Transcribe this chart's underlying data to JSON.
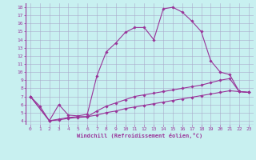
{
  "xlabel": "Windchill (Refroidissement éolien,°C)",
  "xlim": [
    -0.5,
    23.5
  ],
  "ylim": [
    3.5,
    18.5
  ],
  "yticks": [
    4,
    5,
    6,
    7,
    8,
    9,
    10,
    11,
    12,
    13,
    14,
    15,
    16,
    17,
    18
  ],
  "xticks": [
    0,
    1,
    2,
    3,
    4,
    5,
    6,
    7,
    8,
    9,
    10,
    11,
    12,
    13,
    14,
    15,
    16,
    17,
    18,
    19,
    20,
    21,
    22,
    23
  ],
  "bg_color": "#c8f0f0",
  "grid_color": "#aaaacc",
  "line_color": "#993399",
  "line_width": 0.8,
  "marker": "D",
  "marker_size": 1.8,
  "series1": [
    [
      0,
      7.0
    ],
    [
      1,
      5.8
    ],
    [
      2,
      4.0
    ],
    [
      3,
      6.0
    ],
    [
      4,
      4.7
    ],
    [
      5,
      4.6
    ],
    [
      6,
      4.8
    ],
    [
      7,
      9.5
    ],
    [
      8,
      12.5
    ],
    [
      9,
      13.6
    ],
    [
      10,
      14.9
    ],
    [
      11,
      15.5
    ],
    [
      12,
      15.5
    ],
    [
      13,
      14.0
    ],
    [
      14,
      17.8
    ],
    [
      15,
      18.0
    ],
    [
      16,
      17.4
    ],
    [
      17,
      16.3
    ],
    [
      18,
      15.0
    ],
    [
      19,
      11.4
    ],
    [
      20,
      10.0
    ],
    [
      21,
      9.7
    ],
    [
      22,
      7.6
    ],
    [
      23,
      7.5
    ]
  ],
  "series2": [
    [
      0,
      7.0
    ],
    [
      2,
      4.0
    ],
    [
      3,
      4.2
    ],
    [
      4,
      4.4
    ],
    [
      5,
      4.5
    ],
    [
      6,
      4.5
    ],
    [
      7,
      5.2
    ],
    [
      8,
      5.8
    ],
    [
      9,
      6.2
    ],
    [
      10,
      6.6
    ],
    [
      11,
      7.0
    ],
    [
      12,
      7.2
    ],
    [
      13,
      7.4
    ],
    [
      14,
      7.6
    ],
    [
      15,
      7.8
    ],
    [
      16,
      8.0
    ],
    [
      17,
      8.2
    ],
    [
      18,
      8.4
    ],
    [
      19,
      8.7
    ],
    [
      20,
      9.0
    ],
    [
      21,
      9.2
    ],
    [
      22,
      7.6
    ],
    [
      23,
      7.5
    ]
  ],
  "series3": [
    [
      0,
      7.0
    ],
    [
      2,
      4.0
    ],
    [
      3,
      4.1
    ],
    [
      4,
      4.3
    ],
    [
      5,
      4.4
    ],
    [
      6,
      4.5
    ],
    [
      7,
      4.7
    ],
    [
      8,
      5.0
    ],
    [
      9,
      5.2
    ],
    [
      10,
      5.5
    ],
    [
      11,
      5.7
    ],
    [
      12,
      5.9
    ],
    [
      13,
      6.1
    ],
    [
      14,
      6.3
    ],
    [
      15,
      6.5
    ],
    [
      16,
      6.7
    ],
    [
      17,
      6.9
    ],
    [
      18,
      7.1
    ],
    [
      19,
      7.3
    ],
    [
      20,
      7.5
    ],
    [
      21,
      7.7
    ],
    [
      22,
      7.6
    ],
    [
      23,
      7.5
    ]
  ]
}
